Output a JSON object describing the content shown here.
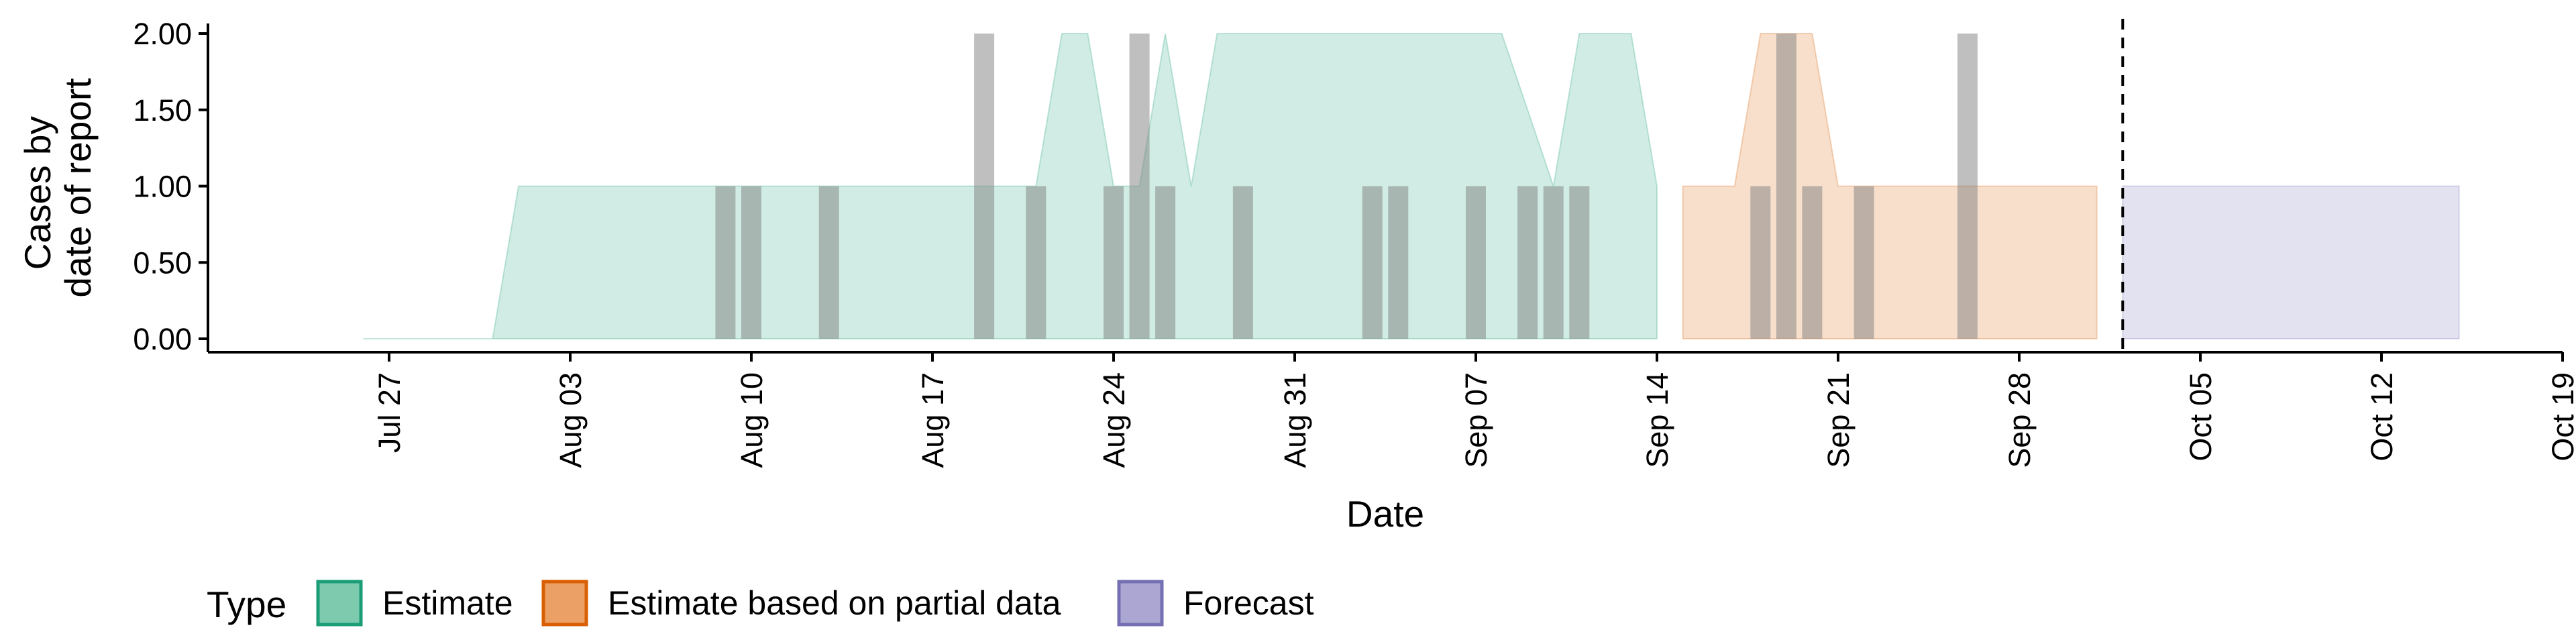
{
  "chart_data": {
    "type": "area",
    "xlabel": "Date",
    "ylabel_lines": [
      "Cases by",
      "date of report"
    ],
    "ylim": [
      0,
      2
    ],
    "yticks": [
      0,
      0.5,
      1,
      1.5,
      2
    ],
    "ytick_labels": [
      "0.00",
      "0.50",
      "1.00",
      "1.50",
      "2.00"
    ],
    "xlim": [
      "2020-07-20",
      "2020-10-19"
    ],
    "xticks": [
      "2020-07-27",
      "2020-08-03",
      "2020-08-10",
      "2020-08-17",
      "2020-08-24",
      "2020-08-31",
      "2020-09-07",
      "2020-09-14",
      "2020-09-21",
      "2020-09-28",
      "2020-10-05",
      "2020-10-12",
      "2020-10-19"
    ],
    "xtick_labels": [
      "Jul 27",
      "Aug 03",
      "Aug 10",
      "Aug 17",
      "Aug 24",
      "Aug 31",
      "Sep 07",
      "Sep 14",
      "Sep 21",
      "Sep 28",
      "Oct 05",
      "Oct 12",
      "Oct 19"
    ],
    "forecast_date": "2020-10-02",
    "series": [
      {
        "name": "Estimate",
        "color": "#1b9e77",
        "points": [
          {
            "x": "2020-07-26",
            "lower": 0,
            "upper": 0
          },
          {
            "x": "2020-07-31",
            "lower": 0,
            "upper": 0
          },
          {
            "x": "2020-08-01",
            "lower": 0,
            "upper": 1
          },
          {
            "x": "2020-08-21",
            "lower": 0,
            "upper": 1
          },
          {
            "x": "2020-08-22",
            "lower": 0,
            "upper": 2
          },
          {
            "x": "2020-08-23",
            "lower": 0,
            "upper": 2
          },
          {
            "x": "2020-08-24",
            "lower": 0,
            "upper": 1
          },
          {
            "x": "2020-08-25",
            "lower": 0,
            "upper": 1
          },
          {
            "x": "2020-08-26",
            "lower": 0,
            "upper": 2
          },
          {
            "x": "2020-08-27",
            "lower": 0,
            "upper": 1
          },
          {
            "x": "2020-08-28",
            "lower": 0,
            "upper": 2
          },
          {
            "x": "2020-09-08",
            "lower": 0,
            "upper": 2
          },
          {
            "x": "2020-09-10",
            "lower": 0,
            "upper": 1
          },
          {
            "x": "2020-09-11",
            "lower": 0,
            "upper": 2
          },
          {
            "x": "2020-09-13",
            "lower": 0,
            "upper": 2
          },
          {
            "x": "2020-09-14",
            "lower": 0,
            "upper": 1
          }
        ]
      },
      {
        "name": "Estimate based on partial data",
        "color": "#d95f02",
        "points": [
          {
            "x": "2020-09-15",
            "lower": 0,
            "upper": 1
          },
          {
            "x": "2020-09-17",
            "lower": 0,
            "upper": 1
          },
          {
            "x": "2020-09-18",
            "lower": 0,
            "upper": 2
          },
          {
            "x": "2020-09-20",
            "lower": 0,
            "upper": 2
          },
          {
            "x": "2020-09-21",
            "lower": 0,
            "upper": 1
          },
          {
            "x": "2020-10-01",
            "lower": 0,
            "upper": 1
          }
        ]
      },
      {
        "name": "Forecast",
        "color": "#7570b3",
        "points": [
          {
            "x": "2020-10-02",
            "lower": 0,
            "upper": 1
          },
          {
            "x": "2020-10-15",
            "lower": 0,
            "upper": 1
          }
        ]
      }
    ],
    "reported_cases": [
      {
        "date": "2020-08-09",
        "value": 1
      },
      {
        "date": "2020-08-10",
        "value": 1
      },
      {
        "date": "2020-08-13",
        "value": 1
      },
      {
        "date": "2020-08-19",
        "value": 2
      },
      {
        "date": "2020-08-21",
        "value": 1
      },
      {
        "date": "2020-08-24",
        "value": 1
      },
      {
        "date": "2020-08-25",
        "value": 2
      },
      {
        "date": "2020-08-26",
        "value": 1
      },
      {
        "date": "2020-08-29",
        "value": 1
      },
      {
        "date": "2020-09-03",
        "value": 1
      },
      {
        "date": "2020-09-04",
        "value": 1
      },
      {
        "date": "2020-09-07",
        "value": 1
      },
      {
        "date": "2020-09-09",
        "value": 1
      },
      {
        "date": "2020-09-10",
        "value": 1
      },
      {
        "date": "2020-09-11",
        "value": 1
      },
      {
        "date": "2020-09-18",
        "value": 1
      },
      {
        "date": "2020-09-19",
        "value": 2
      },
      {
        "date": "2020-09-20",
        "value": 1
      },
      {
        "date": "2020-09-22",
        "value": 1
      },
      {
        "date": "2020-09-26",
        "value": 2
      }
    ],
    "reported_color": "#808080",
    "legend": {
      "title": "Type",
      "position": "bottom-left",
      "items": [
        {
          "label": "Estimate",
          "fill": "#7ecaaf",
          "border": "#1b9e77"
        },
        {
          "label": "Estimate based on partial data",
          "fill": "#eba066",
          "border": "#d95f02"
        },
        {
          "label": "Forecast",
          "fill": "#aba7d2",
          "border": "#7570b3"
        }
      ]
    }
  }
}
